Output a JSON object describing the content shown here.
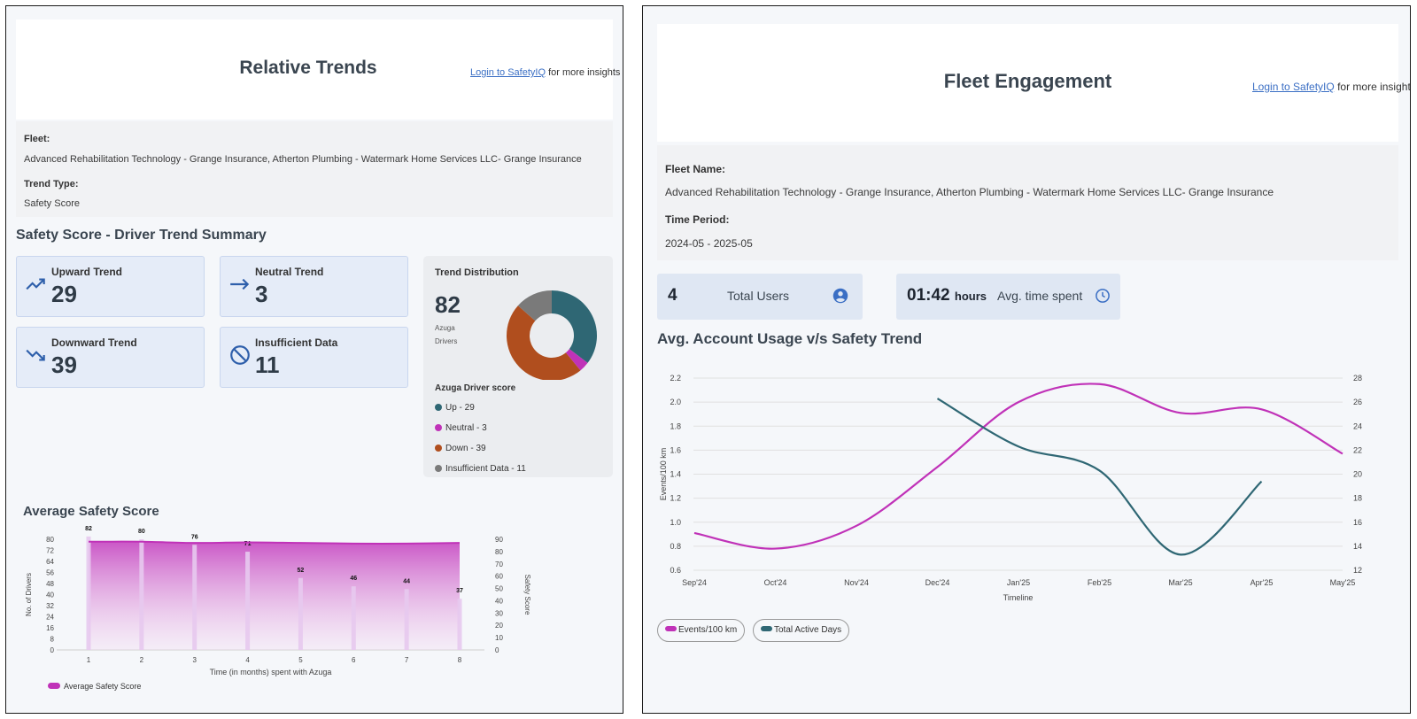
{
  "left": {
    "title": "Relative Trends",
    "login_link": "Login to SafetyIQ",
    "login_suffix": "for more insights",
    "fleet_label": "Fleet:",
    "fleet_value": "Advanced Rehabilitation Technology - Grange Insurance, Atherton Plumbing - Watermark Home Services LLC- Grange Insurance",
    "trend_type_label": "Trend Type:",
    "trend_type_value": "Safety Score",
    "section_title": "Safety Score - Driver Trend Summary",
    "cards": {
      "upward": {
        "label": "Upward Trend",
        "value": "29",
        "icon": "trending-up-icon"
      },
      "neutral": {
        "label": "Neutral Trend",
        "value": "3",
        "icon": "arrow-right-icon"
      },
      "downward": {
        "label": "Downward Trend",
        "value": "39",
        "icon": "trending-down-icon"
      },
      "insufficient": {
        "label": "Insufficient Data",
        "value": "11",
        "icon": "block-icon"
      }
    },
    "distribution": {
      "title": "Trend Distribution",
      "total": "82",
      "total_sub1": "Azuga",
      "total_sub2": "Drivers",
      "legend_title": "Azuga Driver score",
      "legend": [
        {
          "label": "Up - 29",
          "color": "#2f6774"
        },
        {
          "label": "Neutral - 3",
          "color": "#c032b8"
        },
        {
          "label": "Down - 39",
          "color": "#b04e1e"
        },
        {
          "label": "Insufficient Data - 11",
          "color": "#7a7a7a"
        }
      ]
    },
    "avg_title": "Average Safety Score"
  },
  "right": {
    "title": "Fleet Engagement",
    "login_link": "Login to SafetyIQ",
    "login_suffix": "for more insights",
    "fleet_label": "Fleet Name:",
    "fleet_value": "Advanced Rehabilitation Technology - Grange Insurance, Atherton Plumbing - Watermark Home Services LLC- Grange Insurance",
    "period_label": "Time Period:",
    "period_value": "2024-05 - 2025-05",
    "users": {
      "value": "4",
      "label": "Total Users",
      "icon": "user-circle-icon"
    },
    "time": {
      "value": "01:42",
      "unit": "hours",
      "label": "Avg. time spent",
      "icon": "clock-icon"
    },
    "chart_title": "Avg. Account Usage v/s Safety Trend"
  },
  "chart_data": [
    {
      "type": "pie",
      "title": "Trend Distribution",
      "categories": [
        "Up",
        "Neutral",
        "Down",
        "Insufficient Data"
      ],
      "values": [
        29,
        3,
        39,
        11
      ],
      "colors": [
        "#2f6774",
        "#c032b8",
        "#b04e1e",
        "#7a7a7a"
      ]
    },
    {
      "type": "bar",
      "title": "Average Safety Score",
      "xlabel": "Time (in months) spent with Azuga",
      "ylabel": "No. of Drivers",
      "y2label": "Safety Score",
      "categories": [
        "1",
        "2",
        "3",
        "4",
        "5",
        "6",
        "7",
        "8"
      ],
      "values": [
        82,
        80,
        76,
        71,
        52,
        46,
        44,
        37
      ],
      "ylim": [
        0,
        80
      ],
      "yticks": [
        0,
        8,
        16,
        24,
        32,
        40,
        48,
        56,
        64,
        72,
        80
      ],
      "y2lim": [
        0,
        90
      ],
      "y2ticks": [
        0,
        10,
        20,
        30,
        40,
        50,
        60,
        70,
        80,
        90
      ],
      "series": [
        {
          "name": "Average Safety Score",
          "type": "area",
          "axis": "y2",
          "values": [
            88,
            88,
            87,
            87.5,
            87,
            86.5,
            86.5,
            87
          ],
          "color": "#c032b8"
        }
      ]
    },
    {
      "type": "line",
      "title": "Avg. Account Usage v/s Safety Trend",
      "xlabel": "Timeline",
      "ylabel": "Events/100 km",
      "x": [
        "Sep'24",
        "Oct'24",
        "Nov'24",
        "Dec'24",
        "Jan'25",
        "Feb'25",
        "Mar'25",
        "Apr'25",
        "May'25"
      ],
      "ylim": [
        0.6,
        2.2
      ],
      "yticks": [
        0.6,
        0.8,
        1.0,
        1.2,
        1.4,
        1.6,
        1.8,
        2.0,
        2.2
      ],
      "y2lim": [
        12,
        28
      ],
      "y2ticks": [
        12,
        14,
        16,
        18,
        20,
        22,
        24,
        26,
        28
      ],
      "series": [
        {
          "name": "Events/100 km",
          "axis": "y",
          "color": "#c032b8",
          "values": [
            0.91,
            0.78,
            0.97,
            1.46,
            2.0,
            2.15,
            1.91,
            1.94,
            1.57
          ]
        },
        {
          "name": "Total Active Days",
          "axis": "y2",
          "color": "#2f6774",
          "values": [
            null,
            null,
            null,
            26.3,
            22.3,
            20.3,
            13.3,
            19.4,
            null
          ]
        }
      ]
    }
  ]
}
